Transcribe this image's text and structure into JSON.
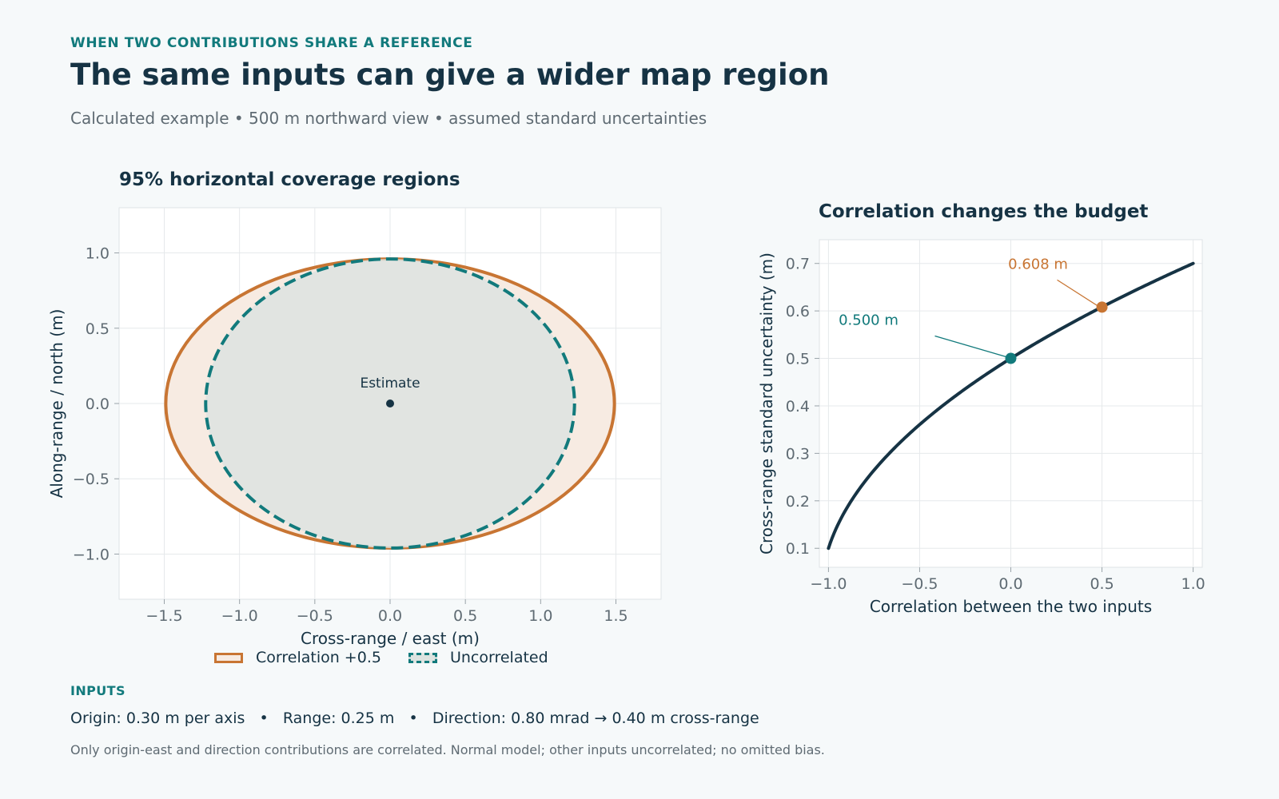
{
  "header": {
    "kicker": "WHEN TWO CONTRIBUTIONS SHARE A REFERENCE",
    "title": "The same inputs can give a wider map region",
    "subtitle": "Calculated example • 500 m northward view • assumed standard uncertainties"
  },
  "chart_data": [
    {
      "type": "scatter",
      "title": "95% horizontal coverage regions",
      "xlabel": "Cross-range / east (m)",
      "ylabel": "Along-range / north (m)",
      "xlim": [
        -1.8,
        1.8
      ],
      "ylim": [
        -1.3,
        1.3
      ],
      "xticks": [
        "−1.5",
        "−1.0",
        "−0.5",
        "0.0",
        "0.5",
        "1.0",
        "1.5"
      ],
      "xtick_values": [
        -1.5,
        -1.0,
        -0.5,
        0.0,
        0.5,
        1.0,
        1.5
      ],
      "yticks": [
        "−1.0",
        "−0.5",
        "0.0",
        "0.5",
        "1.0"
      ],
      "ytick_values": [
        -1.0,
        -0.5,
        0.0,
        0.5,
        1.0
      ],
      "grid": true,
      "legend_position": "bottom",
      "series": [
        {
          "name": "Correlation +0.5",
          "shape": "ellipse",
          "center": [
            0,
            0
          ],
          "semi_axes": [
            1.49,
            0.96
          ],
          "color": "#c87533",
          "fill": "#f7ebe2",
          "style": "solid"
        },
        {
          "name": "Uncorrelated",
          "shape": "ellipse",
          "center": [
            0,
            0
          ],
          "semi_axes": [
            1.225,
            0.96
          ],
          "color": "#127a7c",
          "fill": "#dde3e0",
          "style": "dashed"
        }
      ],
      "annotations": [
        {
          "text": "Estimate",
          "x": 0,
          "y": 0
        }
      ]
    },
    {
      "type": "line",
      "title": "Correlation changes the budget",
      "xlabel": "Correlation between the two inputs",
      "ylabel": "Cross-range standard uncertainty (m)",
      "xlim": [
        -1.05,
        1.05
      ],
      "ylim": [
        0.06,
        0.75
      ],
      "xticks": [
        "−1.0",
        "−0.5",
        "0.0",
        "0.5",
        "1.0"
      ],
      "xtick_values": [
        -1.0,
        -0.5,
        0.0,
        0.5,
        1.0
      ],
      "yticks": [
        "0.1",
        "0.2",
        "0.3",
        "0.4",
        "0.5",
        "0.6",
        "0.7"
      ],
      "ytick_values": [
        0.1,
        0.2,
        0.3,
        0.4,
        0.5,
        0.6,
        0.7
      ],
      "grid": true,
      "series": [
        {
          "formula": "sqrt(0.3^2 + 0.4^2 + 2*rho*0.3*0.4)",
          "x": [
            -1.0,
            -0.5,
            0.0,
            0.5,
            1.0
          ],
          "y": [
            0.1,
            0.361,
            0.5,
            0.608,
            0.7
          ],
          "color": "#163344"
        }
      ],
      "highlights": [
        {
          "x": 0.0,
          "y": 0.5,
          "label": "0.500 m",
          "color": "#127a7c"
        },
        {
          "x": 0.5,
          "y": 0.608,
          "label": "0.608 m",
          "color": "#c87533"
        }
      ]
    }
  ],
  "legend": {
    "correlated": "Correlation +0.5",
    "uncorrelated": "Uncorrelated"
  },
  "inputs": {
    "label": "INPUTS",
    "line": "Origin: 0.30 m per axis   •   Range: 0.25 m   •   Direction: 0.80 mrad → 0.40 m cross-range",
    "footnote": "Only origin-east and direction contributions are correlated. Normal model; other inputs uncorrelated; no omitted bias."
  }
}
